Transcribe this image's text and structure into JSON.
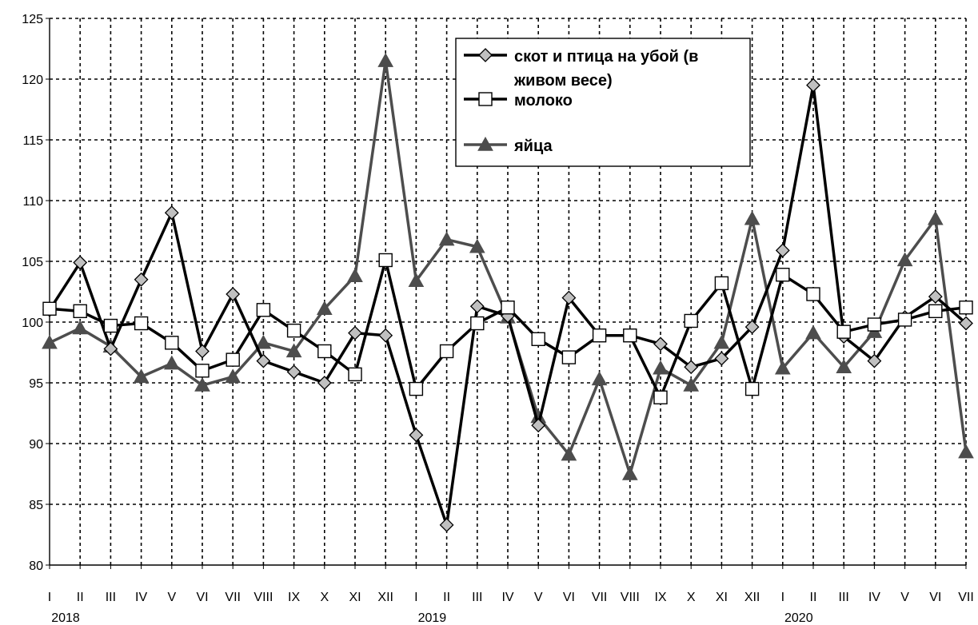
{
  "chart_data": {
    "type": "line",
    "title": "",
    "xlabel": "",
    "ylabel": "",
    "ylim": [
      80,
      125
    ],
    "yticks": [
      80,
      85,
      90,
      95,
      100,
      105,
      110,
      115,
      120,
      125
    ],
    "grid": true,
    "legend_position": "top-right",
    "categories": [
      "I",
      "II",
      "III",
      "IV",
      "V",
      "VI",
      "VII",
      "VIII",
      "IX",
      "X",
      "XI",
      "XII",
      "I",
      "II",
      "III",
      "IV",
      "V",
      "VI",
      "VII",
      "VIII",
      "IX",
      "X",
      "XI",
      "XII",
      "I",
      "II",
      "III",
      "IV",
      "V",
      "VI",
      "VII"
    ],
    "years": [
      {
        "label": "2018",
        "index": 0
      },
      {
        "label": "2019",
        "index": 12
      },
      {
        "label": "2020",
        "index": 24
      }
    ],
    "series": [
      {
        "name": "скот и птица на убой (в живом весе)",
        "legend_lines": [
          "скот и птица на убой (в",
          "живом весе)"
        ],
        "marker": "diamond",
        "line_color": "#000000",
        "marker_fill": "#c0c0c0",
        "values": [
          101.0,
          104.9,
          97.8,
          103.5,
          109.0,
          97.6,
          102.3,
          96.8,
          95.9,
          95.0,
          99.1,
          98.9,
          90.7,
          83.3,
          101.3,
          100.5,
          91.5,
          102.0,
          98.9,
          98.9,
          98.2,
          96.3,
          97.0,
          99.6,
          105.9,
          119.5,
          98.8,
          96.8,
          100.4,
          102.1,
          99.9
        ]
      },
      {
        "name": "молоко",
        "legend_lines": [
          "молоко"
        ],
        "marker": "square",
        "line_color": "#000000",
        "marker_fill": "#ffffff",
        "values": [
          101.1,
          100.9,
          99.7,
          99.9,
          98.3,
          96.0,
          96.9,
          101.0,
          99.3,
          97.6,
          95.7,
          105.1,
          94.5,
          97.6,
          99.9,
          101.2,
          98.6,
          97.1,
          98.9,
          98.9,
          93.8,
          100.1,
          103.2,
          94.5,
          103.9,
          102.3,
          99.2,
          99.8,
          100.2,
          100.9,
          101.2
        ]
      },
      {
        "name": "яйца",
        "legend_lines": [
          "яйца"
        ],
        "marker": "triangle",
        "line_color": "#4d4d4d",
        "marker_fill": "#4d4d4d",
        "values": [
          98.3,
          99.5,
          98.0,
          95.5,
          96.6,
          94.8,
          95.5,
          98.3,
          97.6,
          101.1,
          103.8,
          121.5,
          103.4,
          106.8,
          106.2,
          100.4,
          92.2,
          89.1,
          95.3,
          87.5,
          96.2,
          94.8,
          98.3,
          108.5,
          96.2,
          99.1,
          96.3,
          99.2,
          105.1,
          108.5,
          89.3
        ]
      }
    ]
  }
}
